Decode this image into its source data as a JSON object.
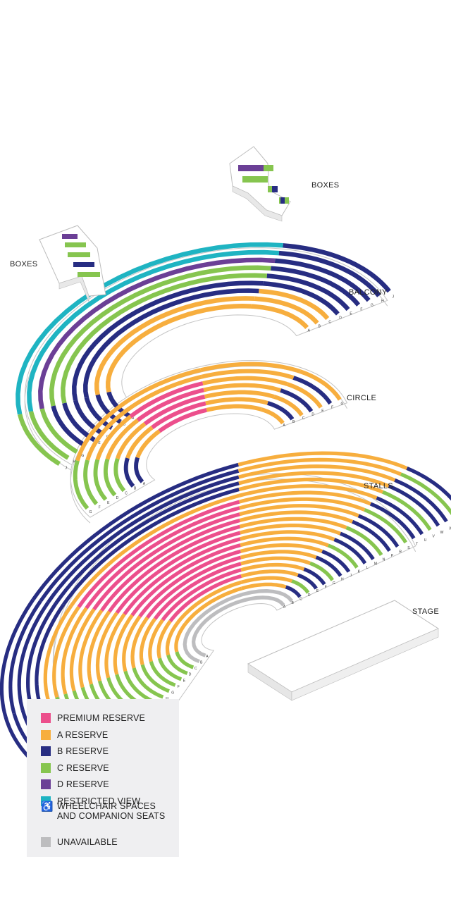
{
  "labels": {
    "boxes_upper": "BOXES",
    "boxes_left": "BOXES",
    "balcony": "BALCONY",
    "circle": "CIRCLE",
    "stalls": "STALLS",
    "stage": "STAGE"
  },
  "colors": {
    "premium": "#ec4f8c",
    "a_reserve": "#f7ae3e",
    "b_reserve": "#272d82",
    "c_reserve": "#86c54f",
    "d_reserve": "#6b3f96",
    "restricted": "#1fb4c2",
    "unavailable": "#bdbdbf"
  },
  "legend": {
    "items": [
      {
        "key": "premium",
        "label": "PREMIUM RESERVE"
      },
      {
        "key": "a_reserve",
        "label": "A RESERVE"
      },
      {
        "key": "b_reserve",
        "label": "B RESERVE"
      },
      {
        "key": "c_reserve",
        "label": "C RESERVE"
      },
      {
        "key": "d_reserve",
        "label": "D RESERVE"
      },
      {
        "key": "restricted",
        "label": "RESTRICTED VIEW"
      }
    ],
    "wheelchair_icon": "wheelchair-icon",
    "wheelchair_line1": "WHEELCHAIR SPACES",
    "wheelchair_line2": "AND COMPANION SEATS",
    "unavailable": "UNAVAILABLE"
  },
  "rows": {
    "balcony": [
      "A",
      "B",
      "C",
      "D",
      "E",
      "F",
      "G",
      "H",
      "J"
    ],
    "circle": [
      "A",
      "B",
      "C",
      "D",
      "E",
      "F",
      "G"
    ],
    "stalls": [
      "A",
      "B",
      "C",
      "D",
      "E",
      "F",
      "G",
      "H",
      "J",
      "K",
      "L",
      "M",
      "N",
      "P",
      "R",
      "S",
      "T",
      "U",
      "V",
      "W",
      "X",
      "Y",
      "Z"
    ]
  }
}
